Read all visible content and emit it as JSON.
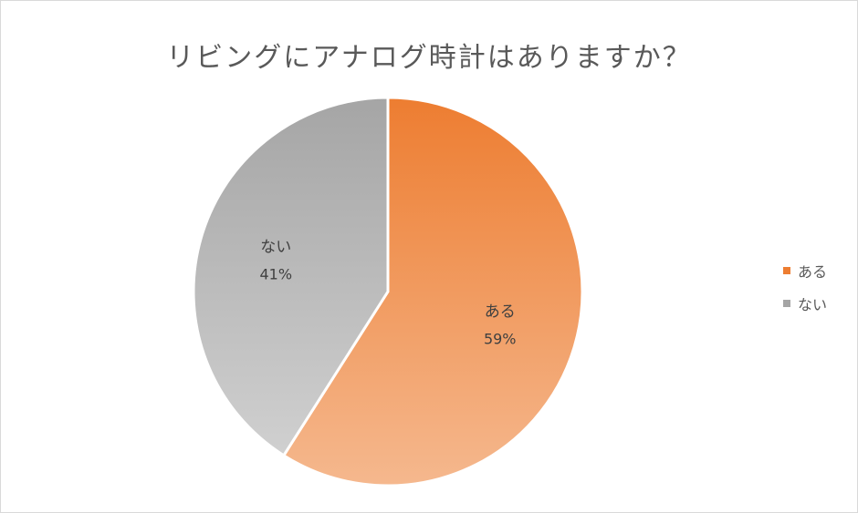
{
  "chart_data": {
    "type": "pie",
    "title": "リビングにアナログ時計はありますか？",
    "categories": [
      "ある",
      "ない"
    ],
    "values": [
      59,
      41
    ],
    "value_labels": [
      "59%",
      "41%"
    ],
    "colors": [
      "#ED7D31",
      "#A5A5A5"
    ],
    "legend": {
      "placement": "right",
      "entries": [
        "ある",
        "ない"
      ]
    }
  }
}
